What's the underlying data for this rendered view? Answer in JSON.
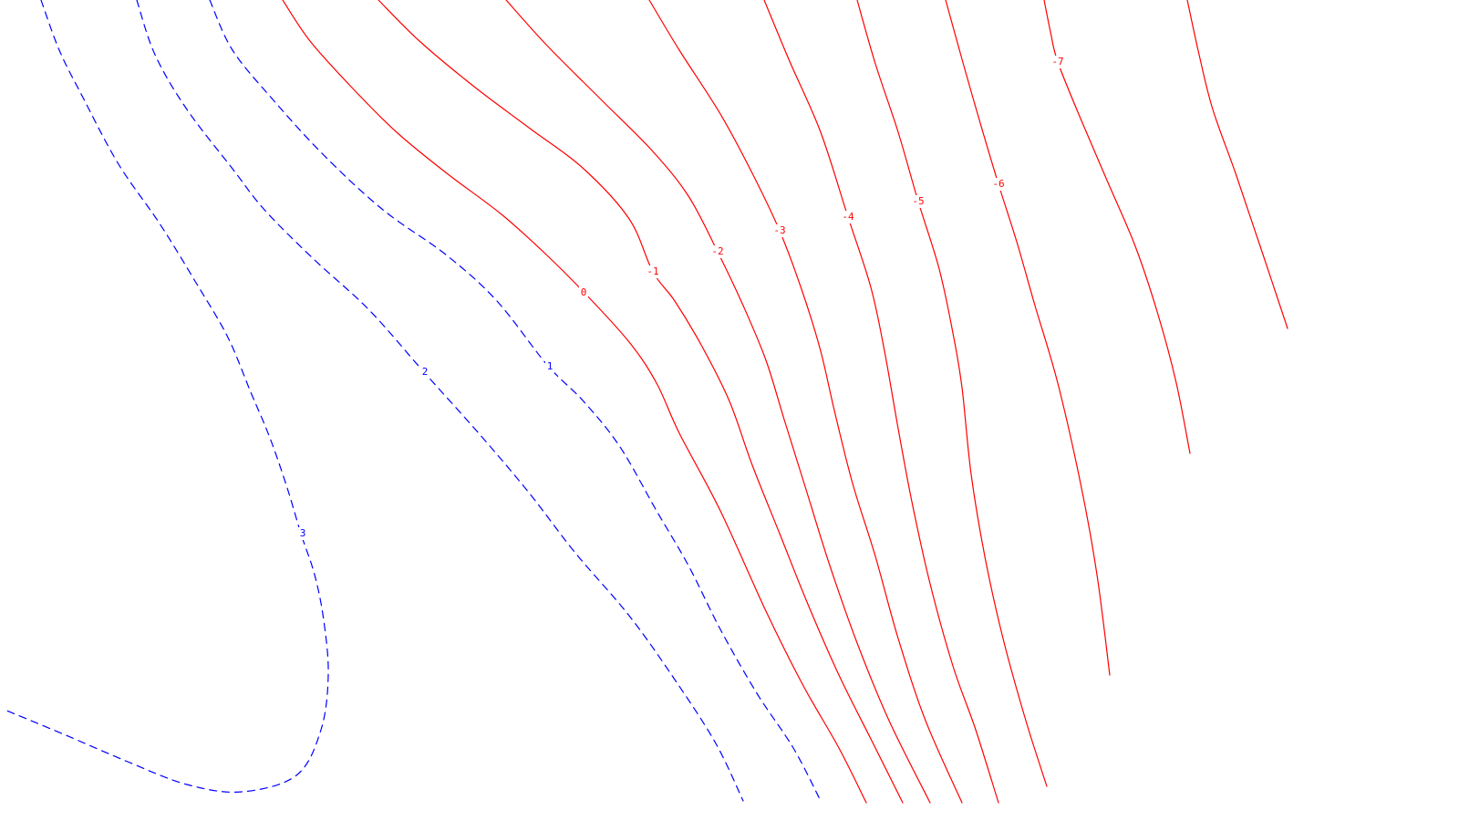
{
  "chart_data": {
    "type": "contour",
    "title": "",
    "xlabel": "",
    "ylabel": "",
    "grid": false,
    "colors": {
      "positive": "#0000ff",
      "negative": "#ff0000"
    },
    "line_styles": {
      "positive": "dashed",
      "negative": "solid"
    },
    "levels": [
      {
        "value": 3,
        "label": "3"
      },
      {
        "value": 2,
        "label": "2"
      },
      {
        "value": 1,
        "label": "1"
      },
      {
        "value": 0,
        "label": "0"
      },
      {
        "value": -1,
        "label": "-1"
      },
      {
        "value": -2,
        "label": "-2"
      },
      {
        "value": -3,
        "label": "-3"
      },
      {
        "value": -4,
        "label": "-4"
      },
      {
        "value": -5,
        "label": "-5"
      },
      {
        "value": -6,
        "label": "-6"
      },
      {
        "value": -7,
        "label": "-7"
      },
      {
        "value": -8,
        "label": ""
      }
    ]
  }
}
